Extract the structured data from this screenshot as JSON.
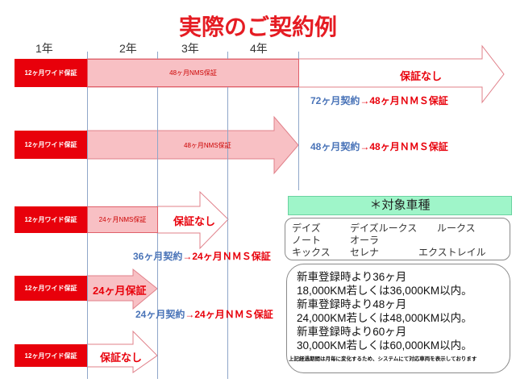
{
  "title": "実際のご契約例",
  "years": [
    "1年",
    "2年",
    "3年",
    "4年"
  ],
  "colors": {
    "red": "#e8000b",
    "pink": "#f8c0c4",
    "blue": "#4a74b8",
    "green": "#9ff5c9"
  },
  "rows": [
    {
      "wide": "12ヶ月ワイド保証",
      "nms": "48ヶ月NMS保証",
      "tail": "保証なし",
      "contract": "72ヶ月契約",
      "arrow": "→",
      "result": "48ヶ月ＮＭＳ保証"
    },
    {
      "wide": "12ヶ月ワイド保証",
      "nms": "48ヶ月NMS保証",
      "contract": "48ヶ月契約",
      "arrow": "→",
      "result": "48ヶ月ＮＭＳ保証"
    },
    {
      "wide": "12ヶ月ワイド保証",
      "nms": "24ヶ月NMS保証",
      "tail": "保証なし",
      "contract": "36ヶ月契約",
      "arrow": "→",
      "result": "24ヶ月ＮＭＳ保証"
    },
    {
      "wide": "12ヶ月ワイド保証",
      "nms": "24ヶ月保証",
      "contract": "24ヶ月契約",
      "arrow": "→",
      "result": "24ヶ月ＮＭＳ保証"
    },
    {
      "wide": "12ヶ月ワイド保証",
      "tail": "保証なし"
    }
  ],
  "models": {
    "heading": "＊対象車種",
    "items": [
      "デイズ",
      "デイズルークス",
      "ルークス",
      "ノート",
      "オーラ",
      "キックス",
      "セレナ",
      "エクストレイル"
    ]
  },
  "conditions": {
    "lines": [
      "新車登録時より36ヶ月",
      "18,000KM若しくは36,000KM以内。",
      "新車登録時より48ヶ月",
      "24,000KM若しくは48,000KM以内。",
      "新車登録時より60ヶ月",
      "30,000KM若しくは60,000KM以内。"
    ],
    "note": "上記経過期間は月毎に変化するため、システムにて対応車両を表示しております"
  }
}
